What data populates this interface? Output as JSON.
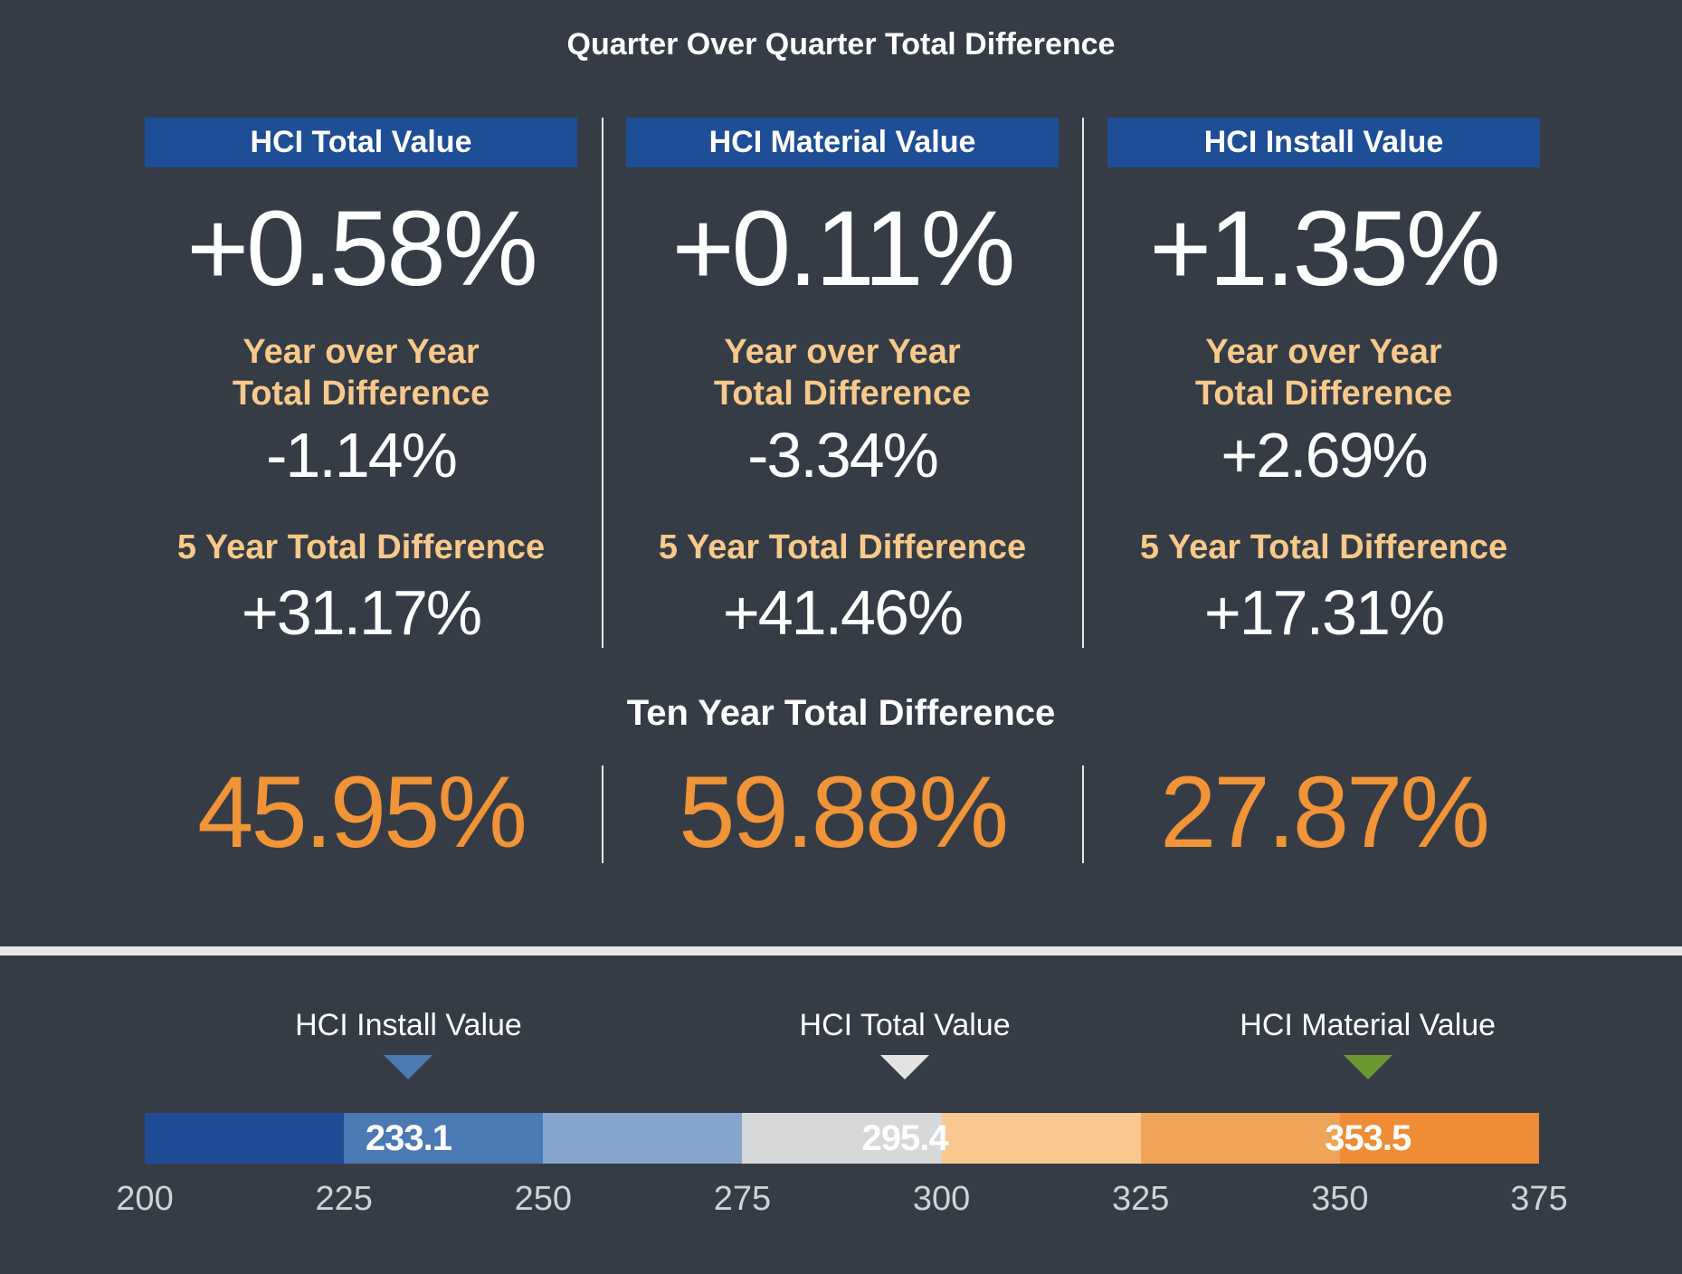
{
  "title": "Quarter Over Quarter Total Difference",
  "columns": [
    {
      "header": "HCI Total Value",
      "qoq": "+0.58%",
      "yoy_label_line1": "Year over Year",
      "yoy_label_line2": "Total Difference",
      "yoy": "-1.14%",
      "five_year_label": "5 Year Total Difference",
      "five_year": "+31.17%",
      "ten_year": "45.95%"
    },
    {
      "header": "HCI Material Value",
      "qoq": "+0.11%",
      "yoy_label_line1": "Year over Year",
      "yoy_label_line2": "Total Difference",
      "yoy": "-3.34%",
      "five_year_label": "5 Year Total Difference",
      "five_year": "+41.46%",
      "ten_year": "59.88%"
    },
    {
      "header": "HCI Install Value",
      "qoq": "+1.35%",
      "yoy_label_line1": "Year over Year",
      "yoy_label_line2": "Total Difference",
      "yoy": "+2.69%",
      "five_year_label": "5 Year Total Difference",
      "five_year": "+17.31%",
      "ten_year": "27.87%"
    }
  ],
  "ten_year_title": "Ten Year Total Difference",
  "colors": {
    "background": "#353c45",
    "header_bar": "#1e4e95",
    "label_accent": "#f8c98b",
    "ten_year_value": "#f09437"
  },
  "chart_data": {
    "type": "bar",
    "subtype": "scale-markers",
    "xlim": [
      200,
      375
    ],
    "ticks": [
      "200",
      "225",
      "250",
      "275",
      "300",
      "325",
      "350",
      "375"
    ],
    "segment_colors": [
      "#1f4c95",
      "#4a79b3",
      "#86a5cd",
      "#d7d8da",
      "#f8c88e",
      "#f0a458",
      "#ee8d35"
    ],
    "markers": [
      {
        "name": "HCI Install Value",
        "value": 233.1,
        "label": "233.1",
        "color": "#4d7ab3"
      },
      {
        "name": "HCI Total Value",
        "value": 295.4,
        "label": "295.4",
        "color": "#e3e3e3"
      },
      {
        "name": "HCI Material Value",
        "value": 353.5,
        "label": "353.5",
        "color": "#6a9a2f"
      }
    ]
  }
}
